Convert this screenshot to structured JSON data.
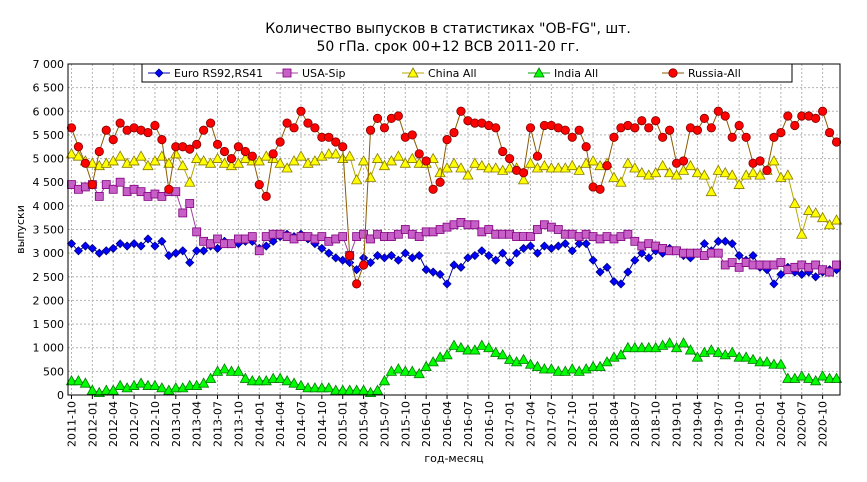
{
  "chart_data": {
    "type": "line",
    "title": "Количество выпусков в статистиках \"OB-FG\", шт.",
    "subtitle": "50 гПа. срок 00+12 ВСВ 2011-20 гг.",
    "xlabel": "год-месяц",
    "ylabel": "выпуски",
    "ylim": [
      0,
      7000
    ],
    "yticks": [
      0,
      500,
      1000,
      1500,
      2000,
      2500,
      3000,
      3500,
      4000,
      4500,
      5000,
      5500,
      6000,
      6500,
      7000
    ],
    "ytick_labels": [
      "0",
      "500",
      "1 000",
      "1 500",
      "2 000",
      "2 500",
      "3 000",
      "3 500",
      "4 000",
      "4 500",
      "5 000",
      "5 500",
      "6 000",
      "6 500",
      "7 000"
    ],
    "x": [
      "2011-10",
      "2011-11",
      "2011-12",
      "2012-01",
      "2012-02",
      "2012-03",
      "2012-04",
      "2012-05",
      "2012-06",
      "2012-07",
      "2012-08",
      "2012-09",
      "2012-10",
      "2012-11",
      "2012-12",
      "2013-01",
      "2013-02",
      "2013-03",
      "2013-04",
      "2013-05",
      "2013-06",
      "2013-07",
      "2013-08",
      "2013-09",
      "2013-10",
      "2013-11",
      "2013-12",
      "2014-01",
      "2014-02",
      "2014-03",
      "2014-04",
      "2014-05",
      "2014-06",
      "2014-07",
      "2014-08",
      "2014-09",
      "2014-10",
      "2014-11",
      "2014-12",
      "2015-01",
      "2015-02",
      "2015-03",
      "2015-04",
      "2015-05",
      "2015-06",
      "2015-07",
      "2015-08",
      "2015-09",
      "2015-10",
      "2015-11",
      "2015-12",
      "2016-01",
      "2016-02",
      "2016-03",
      "2016-04",
      "2016-05",
      "2016-06",
      "2016-07",
      "2016-08",
      "2016-09",
      "2016-10",
      "2016-11",
      "2016-12",
      "2017-01",
      "2017-02",
      "2017-03",
      "2017-04",
      "2017-05",
      "2017-06",
      "2017-07",
      "2017-08",
      "2017-09",
      "2017-10",
      "2017-11",
      "2017-12",
      "2018-01",
      "2018-02",
      "2018-03",
      "2018-04",
      "2018-05",
      "2018-06",
      "2018-07",
      "2018-08",
      "2018-09",
      "2018-10",
      "2018-11",
      "2018-12",
      "2019-01",
      "2019-02",
      "2019-03",
      "2019-04",
      "2019-05",
      "2019-06",
      "2019-07",
      "2019-08",
      "2019-09",
      "2019-10",
      "2019-11",
      "2019-12",
      "2020-01",
      "2020-02",
      "2020-03",
      "2020-04",
      "2020-05",
      "2020-06",
      "2020-07",
      "2020-08",
      "2020-09",
      "2020-10",
      "2020-11",
      "2020-12"
    ],
    "xtick_labels": [
      "2011-10",
      "2012-01",
      "2012-04",
      "2012-07",
      "2012-10",
      "2013-01",
      "2013-04",
      "2013-07",
      "2013-10",
      "2014-01",
      "2014-04",
      "2014-07",
      "2014-10",
      "2015-01",
      "2015-04",
      "2015-07",
      "2015-10",
      "2016-01",
      "2016-04",
      "2016-07",
      "2016-10",
      "2017-01",
      "2017-04",
      "2017-07",
      "2017-10",
      "2018-01",
      "2018-04",
      "2018-07",
      "2018-10",
      "2019-01",
      "2019-04",
      "2019-07",
      "2019-10",
      "2020-01",
      "2020-04",
      "2020-07",
      "2020-10"
    ],
    "grid": true,
    "legend_position": "top",
    "series": [
      {
        "name": "Euro RS92,RS41",
        "color": "#0000ff",
        "marker": "diamond",
        "values": [
          3200,
          3050,
          3150,
          3100,
          3000,
          3050,
          3100,
          3200,
          3150,
          3200,
          3150,
          3300,
          3150,
          3250,
          2950,
          3000,
          3050,
          2800,
          3050,
          3050,
          3150,
          3100,
          3250,
          3200,
          3200,
          3250,
          3250,
          3100,
          3150,
          3250,
          3350,
          3400,
          3350,
          3400,
          3300,
          3200,
          3100,
          3000,
          2900,
          2850,
          2800,
          2650,
          2900,
          2800,
          2950,
          2900,
          2950,
          2850,
          3000,
          2900,
          2950,
          2650,
          2600,
          2550,
          2350,
          2750,
          2700,
          2900,
          2950,
          3050,
          2950,
          2850,
          3000,
          2800,
          3000,
          3100,
          3150,
          3000,
          3150,
          3100,
          3150,
          3200,
          3050,
          3200,
          3200,
          2850,
          2600,
          2700,
          2400,
          2350,
          2600,
          2850,
          3000,
          2900,
          3050,
          3000,
          3100,
          3050,
          2950,
          2900,
          3000,
          3200,
          3050,
          3250,
          3250,
          3200,
          2950,
          2850,
          2950,
          2700,
          2650,
          2350,
          2550,
          2700,
          2600,
          2550,
          2600,
          2500,
          2600,
          2650,
          2650
        ]
      },
      {
        "name": "USA-Sip",
        "color": "#c65fc6",
        "marker": "square",
        "values": [
          4450,
          4350,
          4400,
          4450,
          4200,
          4450,
          4350,
          4500,
          4300,
          4350,
          4300,
          4200,
          4250,
          4200,
          4300,
          4300,
          3850,
          4050,
          3450,
          3250,
          3200,
          3300,
          3200,
          3200,
          3300,
          3300,
          3350,
          3050,
          3350,
          3400,
          3400,
          3350,
          3300,
          3350,
          3350,
          3300,
          3350,
          3250,
          3300,
          3350,
          2950,
          3350,
          3400,
          3300,
          3400,
          3350,
          3350,
          3400,
          3500,
          3400,
          3350,
          3450,
          3450,
          3500,
          3550,
          3600,
          3650,
          3600,
          3600,
          3450,
          3500,
          3400,
          3400,
          3400,
          3350,
          3350,
          3350,
          3500,
          3600,
          3550,
          3500,
          3400,
          3400,
          3350,
          3400,
          3350,
          3300,
          3350,
          3300,
          3350,
          3400,
          3250,
          3150,
          3200,
          3150,
          3100,
          3050,
          3050,
          3000,
          3000,
          3000,
          2950,
          3000,
          3000,
          2750,
          2800,
          2700,
          2800,
          2750,
          2750,
          2750,
          2750,
          2800,
          2650,
          2700,
          2750,
          2700,
          2750,
          2650,
          2600,
          2750
        ]
      },
      {
        "name": "China All",
        "color": "#ffff00",
        "marker": "triangle",
        "values": [
          5100,
          5050,
          4950,
          4900,
          4850,
          4900,
          4950,
          5050,
          4900,
          4950,
          5050,
          4850,
          4950,
          5050,
          4900,
          5100,
          4850,
          4500,
          5000,
          4950,
          4900,
          5000,
          4900,
          4850,
          4900,
          5000,
          4950,
          4950,
          5050,
          5000,
          4900,
          4800,
          4950,
          5050,
          4900,
          4950,
          5050,
          5100,
          5100,
          5000,
          5050,
          4550,
          4950,
          4600,
          5000,
          4850,
          4950,
          5050,
          4900,
          5000,
          4900,
          4900,
          5000,
          4700,
          4800,
          4900,
          4800,
          4650,
          4900,
          4850,
          4800,
          4800,
          4750,
          4800,
          4800,
          4550,
          4900,
          4800,
          4850,
          4800,
          4800,
          4800,
          4850,
          4750,
          4900,
          4950,
          4850,
          4900,
          4600,
          4500,
          4900,
          4800,
          4700,
          4650,
          4700,
          4850,
          4700,
          4650,
          4750,
          4850,
          4700,
          4650,
          4300,
          4750,
          4700,
          4650,
          4450,
          4650,
          4700,
          4650,
          4750,
          4950,
          4600,
          4650,
          4050,
          3400,
          3900,
          3850,
          3750,
          3600,
          3700
        ]
      },
      {
        "name": "India All",
        "color": "#00ff00",
        "marker": "triangle",
        "values": [
          300,
          300,
          250,
          100,
          50,
          100,
          100,
          200,
          150,
          200,
          250,
          200,
          200,
          150,
          100,
          150,
          150,
          200,
          200,
          250,
          350,
          500,
          550,
          500,
          500,
          350,
          300,
          300,
          300,
          350,
          350,
          300,
          250,
          200,
          150,
          150,
          150,
          150,
          100,
          100,
          100,
          100,
          100,
          50,
          100,
          300,
          500,
          550,
          500,
          500,
          450,
          600,
          700,
          800,
          850,
          1050,
          1000,
          950,
          950,
          1050,
          1000,
          900,
          850,
          750,
          700,
          750,
          650,
          600,
          550,
          550,
          500,
          500,
          550,
          500,
          550,
          600,
          600,
          700,
          800,
          850,
          1000,
          1000,
          1000,
          1000,
          1000,
          1050,
          1100,
          1000,
          1100,
          950,
          800,
          900,
          950,
          900,
          850,
          900,
          800,
          800,
          750,
          700,
          700,
          650,
          650,
          350,
          350,
          400,
          350,
          300,
          400,
          350,
          350
        ]
      },
      {
        "name": "Russia-All",
        "color": "#ff0000",
        "marker": "circle",
        "values": [
          5650,
          5250,
          4900,
          4450,
          5150,
          5600,
          5400,
          5750,
          5600,
          5650,
          5600,
          5550,
          5700,
          5400,
          4350,
          5250,
          5250,
          5200,
          5300,
          5600,
          5750,
          5300,
          5150,
          5000,
          5250,
          5150,
          5050,
          4450,
          4200,
          5100,
          5350,
          5750,
          5650,
          6000,
          5750,
          5650,
          5450,
          5450,
          5350,
          5250,
          2950,
          2350,
          2750,
          5600,
          5850,
          5650,
          5850,
          5900,
          5450,
          5500,
          5100,
          4950,
          4350,
          4500,
          5400,
          5550,
          6000,
          5800,
          5750,
          5750,
          5700,
          5650,
          5150,
          5000,
          4750,
          4700,
          5650,
          5050,
          5700,
          5700,
          5650,
          5600,
          5450,
          5600,
          5250,
          4400,
          4350,
          4850,
          5450,
          5650,
          5700,
          5650,
          5800,
          5650,
          5800,
          5450,
          5600,
          4900,
          4950,
          5650,
          5600,
          5850,
          5650,
          6000,
          5900,
          5450,
          5700,
          5450,
          4900,
          4950,
          4750,
          5450,
          5550,
          5900,
          5700,
          5900,
          5900,
          5850,
          6000,
          5550,
          5350
        ]
      }
    ]
  }
}
